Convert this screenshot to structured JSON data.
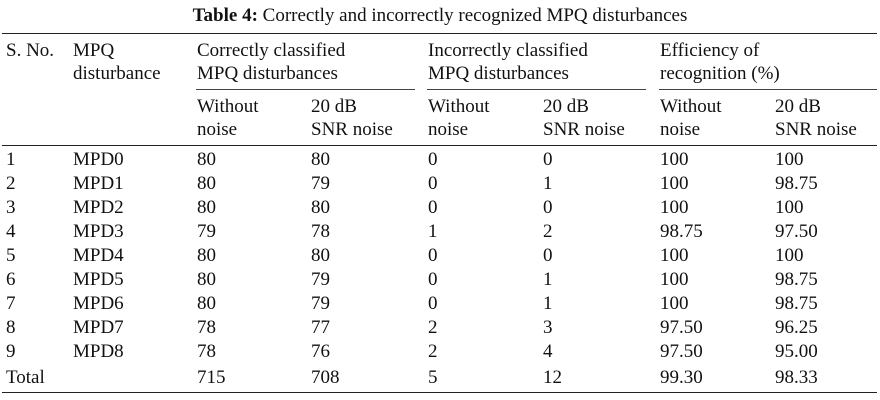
{
  "caption": {
    "label": "Table 4:",
    "text": "Correctly and incorrectly recognized MPQ disturbances"
  },
  "header": {
    "sno": "S. No.",
    "mpq_line1": "MPQ",
    "mpq_line2": "disturbance",
    "group_correct_line1": "Correctly classified",
    "group_correct_line2": "MPQ disturbances",
    "group_incorrect_line1": "Incorrectly classified",
    "group_incorrect_line2": "MPQ disturbances",
    "group_eff_line1": "Efficiency of",
    "group_eff_line2": "recognition (%)",
    "sub_without_line1": "Without",
    "sub_without_line2": "noise",
    "sub_snr_line1": "20 dB",
    "sub_snr_line2": "SNR noise"
  },
  "rows": [
    {
      "sno": "1",
      "mpd": "MPD0",
      "c_wo": "80",
      "c_snr": "80",
      "i_wo": "0",
      "i_snr": "0",
      "e_wo": "100",
      "e_snr": "100"
    },
    {
      "sno": "2",
      "mpd": "MPD1",
      "c_wo": "80",
      "c_snr": "79",
      "i_wo": "0",
      "i_snr": "1",
      "e_wo": "100",
      "e_snr": "98.75"
    },
    {
      "sno": "3",
      "mpd": "MPD2",
      "c_wo": "80",
      "c_snr": "80",
      "i_wo": "0",
      "i_snr": "0",
      "e_wo": "100",
      "e_snr": "100"
    },
    {
      "sno": "4",
      "mpd": "MPD3",
      "c_wo": "79",
      "c_snr": "78",
      "i_wo": "1",
      "i_snr": "2",
      "e_wo": "98.75",
      "e_snr": "97.50"
    },
    {
      "sno": "5",
      "mpd": "MPD4",
      "c_wo": "80",
      "c_snr": "80",
      "i_wo": "0",
      "i_snr": "0",
      "e_wo": "100",
      "e_snr": "100"
    },
    {
      "sno": "6",
      "mpd": "MPD5",
      "c_wo": "80",
      "c_snr": "79",
      "i_wo": "0",
      "i_snr": "1",
      "e_wo": "100",
      "e_snr": "98.75"
    },
    {
      "sno": "7",
      "mpd": "MPD6",
      "c_wo": "80",
      "c_snr": "79",
      "i_wo": "0",
      "i_snr": "1",
      "e_wo": "100",
      "e_snr": "98.75"
    },
    {
      "sno": "8",
      "mpd": "MPD7",
      "c_wo": "78",
      "c_snr": "77",
      "i_wo": "2",
      "i_snr": "3",
      "e_wo": "97.50",
      "e_snr": "96.25"
    },
    {
      "sno": "9",
      "mpd": "MPD8",
      "c_wo": "78",
      "c_snr": "76",
      "i_wo": "2",
      "i_snr": "4",
      "e_wo": "97.50",
      "e_snr": "95.00"
    }
  ],
  "total": {
    "label": "Total",
    "c_wo": "715",
    "c_snr": "708",
    "i_wo": "5",
    "i_snr": "12",
    "e_wo": "99.30",
    "e_snr": "98.33"
  }
}
